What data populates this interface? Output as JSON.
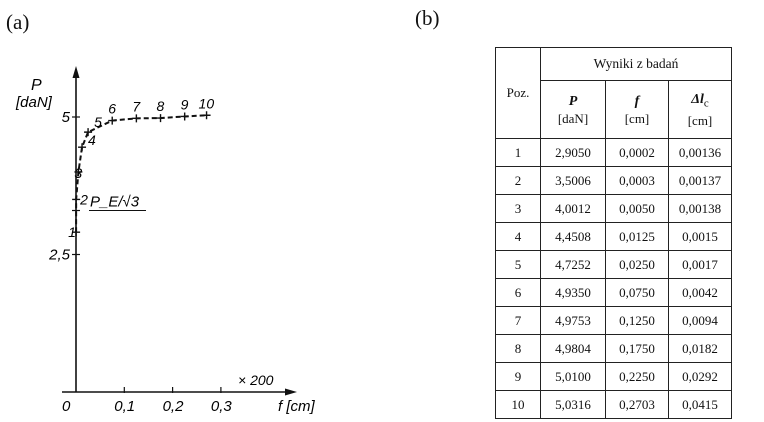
{
  "panel_a_label": "(a)",
  "panel_b_label": "(b)",
  "chart_data": {
    "type": "line",
    "title": "",
    "y_axis_label": "P",
    "y_axis_unit": "[daN]",
    "x_axis_label": "f [cm]",
    "x_scale_note": "× 200",
    "origin_label": "0",
    "reference_label": "P_E/√3",
    "reference_value": 3.3,
    "xlim": [
      0,
      0.3
    ],
    "ylim": [
      0,
      5.3
    ],
    "x_ticks": [
      "0,1",
      "0,2",
      "0,3"
    ],
    "x_tick_values": [
      0.1,
      0.2,
      0.3
    ],
    "y_ticks": [
      "2,5",
      "5"
    ],
    "y_tick_values": [
      2.5,
      5
    ],
    "series": [
      {
        "point_labels": [
          "1",
          "2",
          "3",
          "4",
          "5",
          "6",
          "7",
          "8",
          "9",
          "10"
        ],
        "x": [
          0.0002,
          0.0003,
          0.005,
          0.0125,
          0.025,
          0.075,
          0.125,
          0.175,
          0.225,
          0.2703
        ],
        "y": [
          2.905,
          3.5006,
          4.0012,
          4.4508,
          4.7252,
          4.935,
          4.9753,
          4.9804,
          5.01,
          5.0316
        ]
      }
    ]
  },
  "table": {
    "group_header": "Wyniki z badań",
    "columns": [
      {
        "label": "Poz.",
        "unit": ""
      },
      {
        "label": "P",
        "unit": "[daN]"
      },
      {
        "label": "f",
        "unit": "[cm]"
      },
      {
        "label": "Δl",
        "sub": "c",
        "unit": "[cm]"
      }
    ],
    "rows": [
      [
        "1",
        "2,9050",
        "0,0002",
        "0,00136"
      ],
      [
        "2",
        "3,5006",
        "0,0003",
        "0,00137"
      ],
      [
        "3",
        "4,0012",
        "0,0050",
        "0,00138"
      ],
      [
        "4",
        "4,4508",
        "0,0125",
        "0,0015"
      ],
      [
        "5",
        "4,7252",
        "0,0250",
        "0,0017"
      ],
      [
        "6",
        "4,9350",
        "0,0750",
        "0,0042"
      ],
      [
        "7",
        "4,9753",
        "0,1250",
        "0,0094"
      ],
      [
        "8",
        "4,9804",
        "0,1750",
        "0,0182"
      ],
      [
        "9",
        "5,0100",
        "0,2250",
        "0,0292"
      ],
      [
        "10",
        "5,0316",
        "0,2703",
        "0,0415"
      ]
    ]
  }
}
